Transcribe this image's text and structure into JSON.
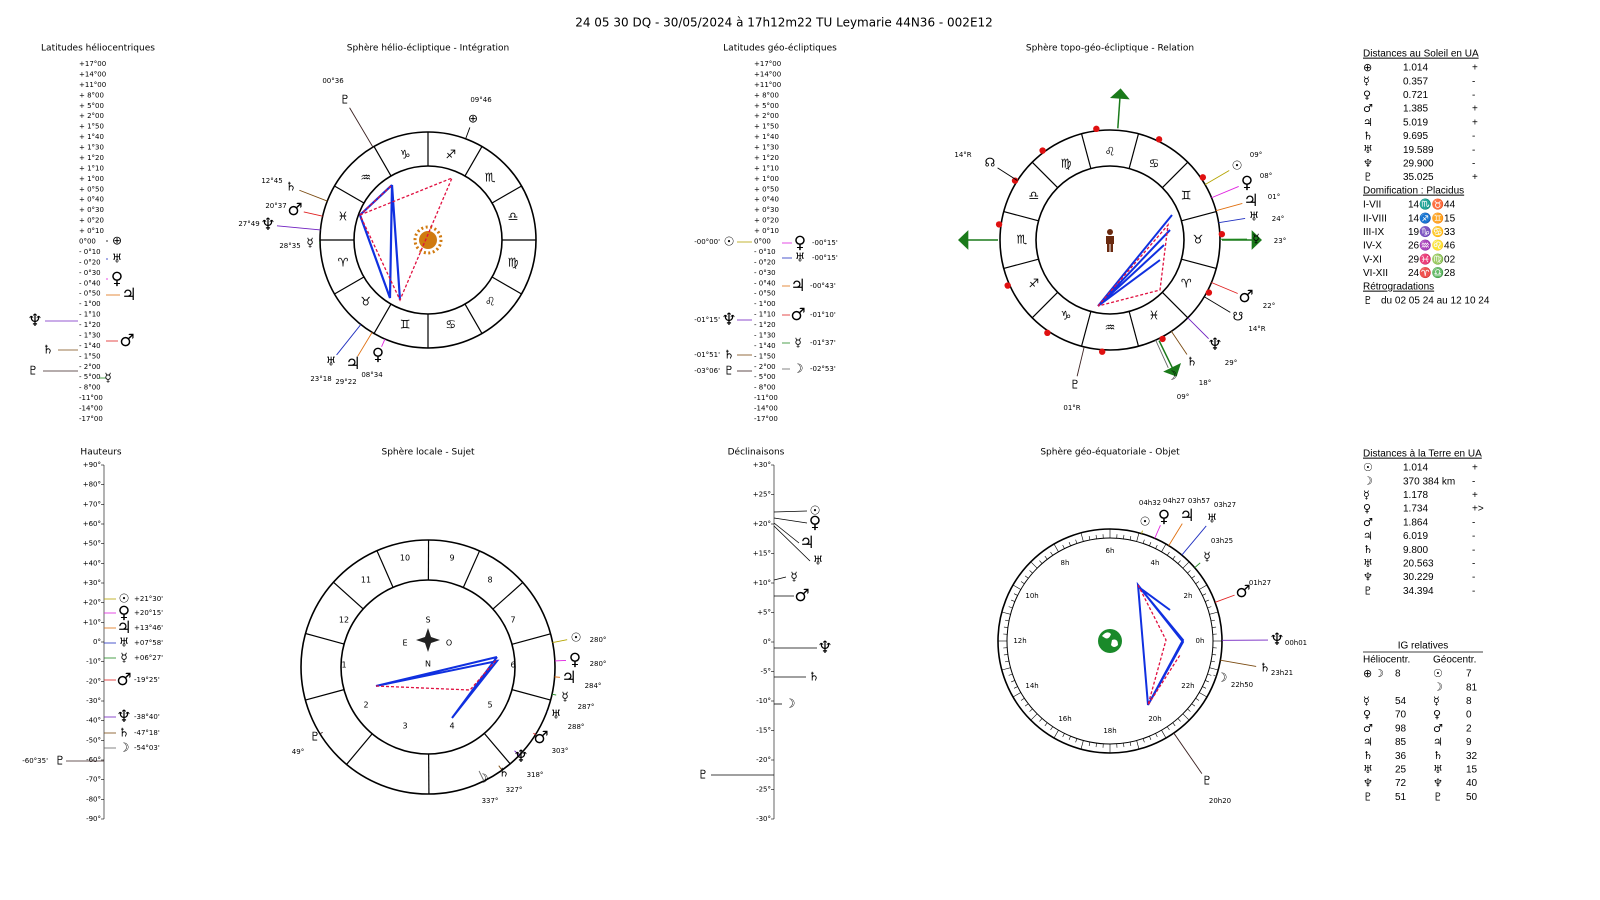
{
  "header": {
    "title": "24 05 30 DQ   -  30/05/2024 à 17h12m22 TU  Leymarie  44N36 - 002E12"
  },
  "planets": {
    "sun": {
      "glyph": "☉",
      "color": "#b4a400"
    },
    "moon": {
      "glyph": "☽",
      "color": "#666666"
    },
    "mercury": {
      "glyph": "☿",
      "color": "#228b22"
    },
    "venus": {
      "glyph": "♀",
      "color": "#e020e0"
    },
    "mars": {
      "glyph": "♂",
      "color": "#e02020"
    },
    "jupiter": {
      "glyph": "♃",
      "color": "#e07010"
    },
    "saturn": {
      "glyph": "♄",
      "color": "#7a4a10"
    },
    "uranus": {
      "glyph": "♅",
      "color": "#2030c0"
    },
    "neptune": {
      "glyph": "♆",
      "color": "#7020c0"
    },
    "pluto": {
      "glyph": "♇",
      "color": "#3a2020"
    },
    "earth": {
      "glyph": "⊕",
      "color": "#000000"
    },
    "node": {
      "glyph": "☊",
      "color": "#000000"
    },
    "south_node": {
      "glyph": "☋",
      "color": "#000000"
    }
  },
  "helio_latitudes": {
    "title": "Latitudes héliocentriques",
    "scale": [
      "+17°00",
      "+14°00",
      "+11°00",
      "+ 8°00",
      "+ 5°00",
      "+ 2°00",
      "+ 1°50",
      "+ 1°40",
      "+ 1°30",
      "+ 1°20",
      "+ 1°10",
      "+ 1°00",
      "+ 0°50",
      "+ 0°40",
      "+ 0°30",
      "+ 0°20",
      "+ 0°10",
      "0°00",
      "- 0°10",
      "- 0°20",
      "- 0°30",
      "- 0°40",
      "- 0°50",
      "- 1°00",
      "- 1°10",
      "- 1°20",
      "- 1°30",
      "- 1°40",
      "- 1°50",
      "- 2°00",
      "- 5°00",
      "- 8°00",
      "-11°00",
      "-14°00",
      "-17°00"
    ],
    "items": [
      {
        "planet": "earth"
      },
      {
        "planet": "uranus"
      },
      {
        "planet": "venus"
      },
      {
        "planet": "jupiter"
      },
      {
        "planet": "neptune"
      },
      {
        "planet": "mars"
      },
      {
        "planet": "saturn"
      },
      {
        "planet": "pluto"
      },
      {
        "planet": "mercury"
      }
    ]
  },
  "helio_sphere": {
    "title": "Sphère hélio-écliptique - Intégration",
    "signs": [
      {
        "glyph": "♑",
        "color": "#333333"
      },
      {
        "glyph": "♐",
        "color": "#e02020"
      },
      {
        "glyph": "♏",
        "color": "#2030c0"
      },
      {
        "glyph": "♎",
        "color": "#228b22"
      },
      {
        "glyph": "♍",
        "color": "#333333"
      },
      {
        "glyph": "♌",
        "color": "#e02020"
      },
      {
        "glyph": "♋",
        "color": "#2030c0"
      },
      {
        "glyph": "♊",
        "color": "#228b22"
      },
      {
        "glyph": "♉",
        "color": "#333333"
      },
      {
        "glyph": "♈",
        "color": "#e02020"
      },
      {
        "glyph": "♓",
        "color": "#2030c0"
      },
      {
        "glyph": "♒",
        "color": "#228b22"
      }
    ],
    "items": [
      {
        "planet": "pluto",
        "label": "00°36"
      },
      {
        "planet": "earth",
        "label": "09°46"
      },
      {
        "planet": "saturn",
        "label": "12°45"
      },
      {
        "planet": "mars",
        "label": "20°37"
      },
      {
        "planet": "neptune",
        "label": "27°49"
      },
      {
        "planet": "mercury",
        "label": "28°35"
      },
      {
        "planet": "uranus",
        "label": "23°18"
      },
      {
        "planet": "jupiter",
        "label": "29°22"
      },
      {
        "planet": "venus",
        "label": "08°34"
      }
    ]
  },
  "geo_latitudes": {
    "title": "Latitudes géo-écliptiques",
    "scale": [
      "+17°00",
      "+14°00",
      "+11°00",
      "+ 8°00",
      "+ 5°00",
      "+ 2°00",
      "+ 1°50",
      "+ 1°40",
      "+ 1°30",
      "+ 1°20",
      "+ 1°10",
      "+ 1°00",
      "+ 0°50",
      "+ 0°40",
      "+ 0°30",
      "+ 0°20",
      "+ 0°10",
      "0°00",
      "- 0°10",
      "- 0°20",
      "- 0°30",
      "- 0°40",
      "- 0°50",
      "- 1°00",
      "- 1°10",
      "- 1°20",
      "- 1°30",
      "- 1°40",
      "- 1°50",
      "- 2°00",
      "- 5°00",
      "- 8°00",
      "-11°00",
      "-14°00",
      "-17°00"
    ],
    "items": [
      {
        "planet": "sun",
        "label": "-00°00'"
      },
      {
        "planet": "venus",
        "label": "-00°15'"
      },
      {
        "planet": "uranus",
        "label": "-00°15'"
      },
      {
        "planet": "jupiter",
        "label": "-00°43'"
      },
      {
        "planet": "neptune",
        "label": "-01°15'"
      },
      {
        "planet": "mars",
        "label": "-01°10'"
      },
      {
        "planet": "mercury",
        "label": "-01°37'"
      },
      {
        "planet": "saturn",
        "label": "-01°51'"
      },
      {
        "planet": "pluto",
        "label": "-03°06'"
      },
      {
        "planet": "moon",
        "label": "-02°53'"
      }
    ]
  },
  "topo_sphere": {
    "title": "Sphère topo-géo-écliptique - Relation",
    "signs": [
      {
        "glyph": "♍",
        "color": "#333333"
      },
      {
        "glyph": "♌",
        "color": "#e02020"
      },
      {
        "glyph": "♋",
        "color": "#2030c0"
      },
      {
        "glyph": "♊",
        "color": "#228b22"
      },
      {
        "glyph": "♉",
        "color": "#333333"
      },
      {
        "glyph": "♈",
        "color": "#e02020"
      },
      {
        "glyph": "♓",
        "color": "#2030c0"
      },
      {
        "glyph": "♒",
        "color": "#228b22"
      },
      {
        "glyph": "♑",
        "color": "#333333"
      },
      {
        "glyph": "♐",
        "color": "#e02020"
      },
      {
        "glyph": "♏",
        "color": "#2030c0"
      },
      {
        "glyph": "♎",
        "color": "#228b22"
      }
    ],
    "items": [
      {
        "planet": "node",
        "label": "14°R"
      },
      {
        "planet": "sun",
        "label": "09°"
      },
      {
        "planet": "venus",
        "label": "08°"
      },
      {
        "planet": "jupiter",
        "label": "01°"
      },
      {
        "planet": "uranus",
        "label": "24°"
      },
      {
        "planet": "mercury",
        "label": "23°"
      },
      {
        "planet": "mars",
        "label": "22°"
      },
      {
        "planet": "south_node",
        "label": "14°R"
      },
      {
        "planet": "neptune",
        "label": "29°"
      },
      {
        "planet": "saturn",
        "label": "18°"
      },
      {
        "planet": "moon",
        "label": "09°"
      },
      {
        "planet": "pluto",
        "label": "01°R"
      }
    ]
  },
  "heights": {
    "title": "Hauteurs",
    "scale": [
      "+90°",
      "+80°",
      "+70°",
      "+60°",
      "+50°",
      "+40°",
      "+30°",
      "+20°",
      "+10°",
      "0°",
      "-10°",
      "-20°",
      "-30°",
      "-40°",
      "-50°",
      "-60°",
      "-70°",
      "-80°",
      "-90°"
    ],
    "items": [
      {
        "planet": "sun",
        "label": "+21°30'"
      },
      {
        "planet": "venus",
        "label": "+20°15'"
      },
      {
        "planet": "jupiter",
        "label": "+13°46'"
      },
      {
        "planet": "uranus",
        "label": "+07°58'"
      },
      {
        "planet": "mercury",
        "label": "+06°27'"
      },
      {
        "planet": "mars",
        "label": "-19°25'"
      },
      {
        "planet": "neptune",
        "label": "-38°40'"
      },
      {
        "planet": "saturn",
        "label": "-47°18'"
      },
      {
        "planet": "moon",
        "label": "-54°03'"
      },
      {
        "planet": "pluto",
        "label": "-60°35'"
      }
    ]
  },
  "local_sphere": {
    "title": "Sphère locale - Sujet",
    "houses": [
      "10",
      "9",
      "8",
      "7",
      "6",
      "5",
      "4",
      "3",
      "2",
      "1",
      "12",
      "11"
    ],
    "compass": [
      "S",
      "E",
      "O",
      "N"
    ],
    "items": [
      {
        "planet": "sun",
        "label": "280°"
      },
      {
        "planet": "venus",
        "label": "280°"
      },
      {
        "planet": "jupiter",
        "label": "284°"
      },
      {
        "planet": "mercury",
        "label": "287°"
      },
      {
        "planet": "uranus",
        "label": "288°"
      },
      {
        "planet": "mars",
        "label": "303°"
      },
      {
        "planet": "neptune",
        "label": "318°"
      },
      {
        "planet": "saturn",
        "label": "327°"
      },
      {
        "planet": "moon",
        "label": "337°"
      },
      {
        "planet": "pluto",
        "label": "49°"
      }
    ]
  },
  "declinations": {
    "title": "Déclinaisons",
    "scale": [
      "+30°",
      "+25°",
      "+20°",
      "+15°",
      "+10°",
      "+5°",
      "0°",
      "-5°",
      "-10°",
      "-15°",
      "-20°",
      "-25°",
      "-30°"
    ],
    "items": [
      {
        "planet": "sun"
      },
      {
        "planet": "venus"
      },
      {
        "planet": "jupiter"
      },
      {
        "planet": "uranus"
      },
      {
        "planet": "mercury"
      },
      {
        "planet": "mars"
      },
      {
        "planet": "neptune"
      },
      {
        "planet": "saturn"
      },
      {
        "planet": "moon"
      },
      {
        "planet": "pluto"
      }
    ]
  },
  "equatorial_sphere": {
    "title": "Sphère géo-équatoriale - Objet",
    "hours": [
      "6h",
      "4h",
      "2h",
      "0h",
      "22h",
      "20h",
      "18h",
      "16h",
      "14h",
      "12h",
      "10h",
      "8h"
    ],
    "items": [
      {
        "planet": "sun",
        "label": "04h32"
      },
      {
        "planet": "venus",
        "label": "04h27"
      },
      {
        "planet": "jupiter",
        "label": "03h57"
      },
      {
        "planet": "uranus",
        "label": "03h27"
      },
      {
        "planet": "mercury",
        "label": "03h25"
      },
      {
        "planet": "mars",
        "label": "01h27"
      },
      {
        "planet": "neptune",
        "label": "00h01"
      },
      {
        "planet": "saturn",
        "label": "23h21"
      },
      {
        "planet": "moon",
        "label": "22h50"
      },
      {
        "planet": "pluto",
        "label": "20h20"
      }
    ]
  },
  "sun_distances": {
    "title": "Distances au Soleil en UA",
    "rows": [
      {
        "planet": "earth",
        "value": "1.014",
        "trend": "+"
      },
      {
        "planet": "mercury",
        "value": "0.357",
        "trend": "-"
      },
      {
        "planet": "venus",
        "value": "0.721",
        "trend": "-"
      },
      {
        "planet": "mars",
        "value": "1.385",
        "trend": "+"
      },
      {
        "planet": "jupiter",
        "value": "5.019",
        "trend": "+"
      },
      {
        "planet": "saturn",
        "value": "9.695",
        "trend": "-"
      },
      {
        "planet": "uranus",
        "value": "19.589",
        "trend": "-"
      },
      {
        "planet": "neptune",
        "value": "29.900",
        "trend": "-"
      },
      {
        "planet": "pluto",
        "value": "35.025",
        "trend": "+"
      }
    ]
  },
  "domification": {
    "title": "Domification : Placidus",
    "rows": [
      {
        "axis": "I-VII",
        "cusp": "14♏♉44"
      },
      {
        "axis": "II-VIII",
        "cusp": "14♐♊15"
      },
      {
        "axis": "III-IX",
        "cusp": "19♑♋33"
      },
      {
        "axis": "IV-X",
        "cusp": "26♒♌46"
      },
      {
        "axis": "V-XI",
        "cusp": "29♓♍02"
      },
      {
        "axis": "VI-XII",
        "cusp": "24♈♎28"
      }
    ]
  },
  "retrogrades": {
    "title": "Rétrogradations",
    "rows": [
      {
        "planet": "pluto",
        "text": "du 02 05 24 au 12 10 24"
      }
    ]
  },
  "earth_distances": {
    "title": "Distances à la Terre en UA",
    "rows": [
      {
        "planet": "sun",
        "value": "1.014",
        "trend": "+"
      },
      {
        "planet": "moon",
        "value": "370 384 km",
        "trend": "-"
      },
      {
        "planet": "mercury",
        "value": "1.178",
        "trend": "+"
      },
      {
        "planet": "venus",
        "value": "1.734",
        "trend": "+>"
      },
      {
        "planet": "mars",
        "value": "1.864",
        "trend": "-"
      },
      {
        "planet": "jupiter",
        "value": "6.019",
        "trend": "-"
      },
      {
        "planet": "saturn",
        "value": "9.800",
        "trend": "-"
      },
      {
        "planet": "uranus",
        "value": "20.563",
        "trend": "-"
      },
      {
        "planet": "neptune",
        "value": "30.229",
        "trend": "-"
      },
      {
        "planet": "pluto",
        "value": "34.394",
        "trend": "-"
      }
    ]
  },
  "ig_relatives": {
    "title": "IG relatives",
    "headers": [
      "Héliocentr.",
      "Géocentr."
    ],
    "rows": [
      {
        "helio": [
          "earth",
          "moon"
        ],
        "helio_value": "8",
        "geo": "sun",
        "geo_value": "7"
      },
      {
        "geo": "moon",
        "geo_value": "81"
      },
      {
        "helio": [
          "mercury"
        ],
        "helio_value": "54",
        "geo": "mercury",
        "geo_value": "8"
      },
      {
        "helio": [
          "venus"
        ],
        "helio_value": "70",
        "geo": "venus",
        "geo_value": "0"
      },
      {
        "helio": [
          "mars"
        ],
        "helio_value": "98",
        "geo": "mars",
        "geo_value": "2"
      },
      {
        "helio": [
          "jupiter"
        ],
        "helio_value": "85",
        "geo": "jupiter",
        "geo_value": "9"
      },
      {
        "helio": [
          "saturn"
        ],
        "helio_value": "36",
        "geo": "saturn",
        "geo_value": "32"
      },
      {
        "helio": [
          "uranus"
        ],
        "helio_value": "25",
        "geo": "uranus",
        "geo_value": "15"
      },
      {
        "helio": [
          "neptune"
        ],
        "helio_value": "72",
        "geo": "neptune",
        "geo_value": "40"
      },
      {
        "helio": [
          "pluto"
        ],
        "helio_value": "51",
        "geo": "pluto",
        "geo_value": "50"
      }
    ]
  }
}
